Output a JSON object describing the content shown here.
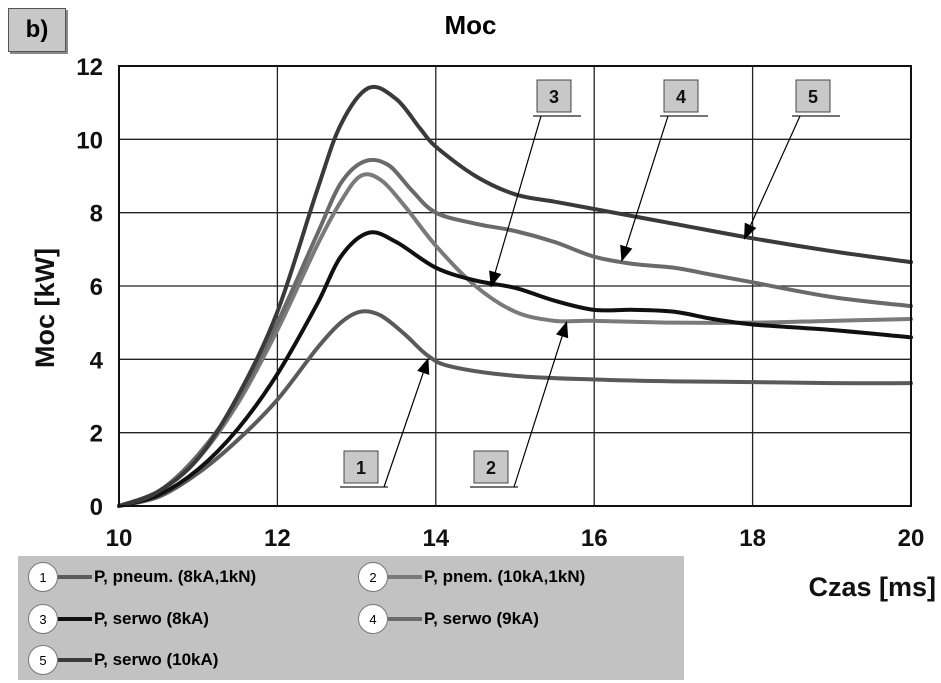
{
  "panel_label": "b)",
  "chart_data": {
    "type": "line",
    "title": "Moc",
    "xlabel": "Czas [ms]",
    "ylabel": "Moc  [kW]",
    "xlim": [
      10,
      20
    ],
    "ylim": [
      0,
      12
    ],
    "xticks": [
      10,
      12,
      14,
      16,
      18,
      20
    ],
    "yticks": [
      0,
      2,
      4,
      6,
      8,
      10,
      12
    ],
    "grid": true,
    "series": [
      {
        "id": "1",
        "name": "P, pneum. (8kA,1kN)",
        "color": "#5a5a5a",
        "x": [
          10,
          10.5,
          11,
          11.5,
          12,
          12.5,
          12.8,
          13.05,
          13.3,
          13.6,
          13.9,
          14.2,
          15,
          16,
          17,
          18,
          19,
          20
        ],
        "y": [
          0,
          0.25,
          0.9,
          1.8,
          2.9,
          4.3,
          5.0,
          5.3,
          5.2,
          4.7,
          4.1,
          3.8,
          3.55,
          3.45,
          3.4,
          3.38,
          3.35,
          3.35
        ]
      },
      {
        "id": "2",
        "name": "P, pnem. (10kA,1kN)",
        "color": "#7a7a7a",
        "x": [
          10,
          10.5,
          11,
          11.5,
          12,
          12.5,
          12.8,
          13.05,
          13.3,
          13.6,
          14,
          14.5,
          15,
          15.5,
          16,
          17,
          18,
          19,
          20
        ],
        "y": [
          0,
          0.4,
          1.3,
          2.8,
          4.8,
          7.1,
          8.3,
          9.0,
          8.9,
          8.2,
          7.1,
          6.0,
          5.3,
          5.05,
          5.05,
          5.0,
          5.0,
          5.05,
          5.1
        ]
      },
      {
        "id": "3",
        "name": "P, serwo (8kA)",
        "color": "#101010",
        "x": [
          10,
          10.5,
          11,
          11.5,
          12,
          12.5,
          12.8,
          13.15,
          13.5,
          14,
          14.5,
          15,
          15.5,
          16,
          16.5,
          17,
          17.5,
          18,
          19,
          20
        ],
        "y": [
          0,
          0.3,
          1.0,
          2.1,
          3.6,
          5.5,
          6.8,
          7.45,
          7.2,
          6.5,
          6.15,
          5.95,
          5.6,
          5.35,
          5.35,
          5.3,
          5.1,
          4.95,
          4.8,
          4.6
        ]
      },
      {
        "id": "4",
        "name": "P, serwo (9kA)",
        "color": "#6a6a6a",
        "x": [
          10,
          10.5,
          11,
          11.5,
          12,
          12.5,
          12.8,
          13.1,
          13.4,
          13.7,
          14,
          14.5,
          15,
          15.5,
          16,
          16.5,
          17,
          17.5,
          18,
          19,
          20
        ],
        "y": [
          0,
          0.4,
          1.4,
          2.9,
          5.0,
          7.4,
          8.8,
          9.4,
          9.3,
          8.6,
          8.0,
          7.7,
          7.5,
          7.2,
          6.8,
          6.6,
          6.5,
          6.3,
          6.1,
          5.7,
          5.45
        ]
      },
      {
        "id": "5",
        "name": "P, serwo (10kA)",
        "color": "#3a3a3a",
        "x": [
          10,
          10.5,
          11,
          11.5,
          12,
          12.5,
          12.8,
          13.15,
          13.5,
          13.8,
          14,
          14.5,
          15,
          15.5,
          16,
          17,
          18,
          19,
          20
        ],
        "y": [
          0,
          0.4,
          1.3,
          3.0,
          5.3,
          8.6,
          10.4,
          11.4,
          11.1,
          10.3,
          9.8,
          9.0,
          8.5,
          8.3,
          8.1,
          7.7,
          7.3,
          6.95,
          6.65
        ]
      }
    ],
    "annotations": [
      {
        "label": "1",
        "point": [
          13.9,
          4.0
        ]
      },
      {
        "label": "2",
        "point": [
          15.65,
          5.0
        ]
      },
      {
        "label": "3",
        "point": [
          14.7,
          6.0
        ]
      },
      {
        "label": "4",
        "point": [
          16.35,
          6.7
        ]
      },
      {
        "label": "5",
        "point": [
          17.9,
          7.3
        ]
      }
    ]
  }
}
